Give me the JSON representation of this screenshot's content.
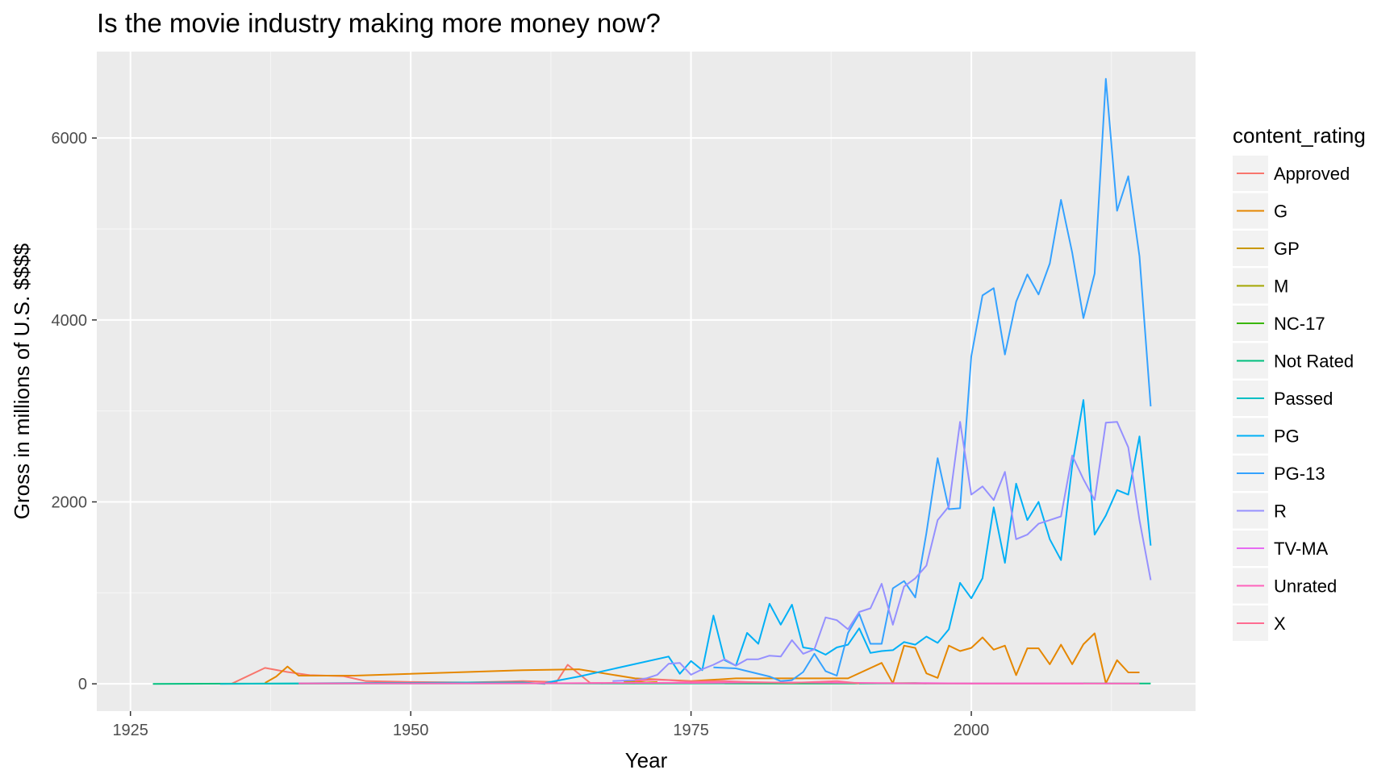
{
  "chart_data": {
    "type": "line",
    "title": "Is the movie industry making more money now?",
    "xlabel": "Year",
    "ylabel": "Gross in millions of U.S. $$$$",
    "xlim": [
      1922,
      2020
    ],
    "ylim": [
      -300,
      6950
    ],
    "x_ticks": [
      1925,
      1950,
      1975,
      2000
    ],
    "y_ticks": [
      0,
      2000,
      4000,
      6000
    ],
    "grid": true,
    "legend_title": "content_rating",
    "legend_position": "right",
    "series": [
      {
        "name": "Approved",
        "color": "#F8766D",
        "points": [
          [
            1934,
            0
          ],
          [
            1937,
            175
          ],
          [
            1939,
            130
          ],
          [
            1941,
            95
          ],
          [
            1944,
            85
          ],
          [
            1946,
            30
          ],
          [
            1950,
            20
          ],
          [
            1955,
            15
          ],
          [
            1960,
            30
          ],
          [
            1963,
            20
          ],
          [
            1964,
            210
          ],
          [
            1966,
            10
          ],
          [
            1970,
            5
          ]
        ]
      },
      {
        "name": "G",
        "color": "#E58700",
        "points": [
          [
            1937,
            10
          ],
          [
            1938,
            80
          ],
          [
            1939,
            190
          ],
          [
            1940,
            90
          ],
          [
            1945,
            90
          ],
          [
            1955,
            130
          ],
          [
            1960,
            150
          ],
          [
            1965,
            160
          ],
          [
            1970,
            60
          ],
          [
            1975,
            30
          ],
          [
            1979,
            60
          ],
          [
            1984,
            60
          ],
          [
            1989,
            60
          ],
          [
            1992,
            230
          ],
          [
            1993,
            5
          ],
          [
            1994,
            420
          ],
          [
            1995,
            395
          ],
          [
            1996,
            115
          ],
          [
            1997,
            65
          ],
          [
            1998,
            420
          ],
          [
            1999,
            360
          ],
          [
            2000,
            395
          ],
          [
            2001,
            510
          ],
          [
            2002,
            375
          ],
          [
            2003,
            420
          ],
          [
            2004,
            95
          ],
          [
            2005,
            390
          ],
          [
            2006,
            390
          ],
          [
            2007,
            215
          ],
          [
            2008,
            430
          ],
          [
            2009,
            215
          ],
          [
            2010,
            435
          ],
          [
            2011,
            555
          ],
          [
            2012,
            5
          ],
          [
            2013,
            260
          ],
          [
            2014,
            125
          ],
          [
            2015,
            125
          ]
        ]
      },
      {
        "name": "GP",
        "color": "#C99800",
        "points": [
          [
            1969,
            20
          ],
          [
            1970,
            25
          ],
          [
            1971,
            15
          ],
          [
            1972,
            20
          ]
        ]
      },
      {
        "name": "M",
        "color": "#A3A500",
        "points": [
          [
            1967,
            5
          ],
          [
            1968,
            10
          ],
          [
            1969,
            5
          ]
        ]
      },
      {
        "name": "NC-17",
        "color": "#39B600",
        "points": [
          [
            1978,
            5
          ],
          [
            1985,
            3
          ],
          [
            1990,
            5
          ],
          [
            1995,
            8
          ],
          [
            1996,
            5
          ]
        ]
      },
      {
        "name": "Not Rated",
        "color": "#00BF7D",
        "points": [
          [
            1927,
            0
          ],
          [
            1935,
            2
          ],
          [
            1947,
            3
          ],
          [
            1960,
            5
          ],
          [
            1970,
            3
          ],
          [
            1980,
            5
          ],
          [
            1990,
            5
          ],
          [
            2000,
            3
          ],
          [
            2010,
            5
          ],
          [
            2016,
            3
          ]
        ]
      },
      {
        "name": "Passed",
        "color": "#00BFC4",
        "points": [
          [
            1933,
            0
          ],
          [
            1940,
            5
          ],
          [
            1947,
            10
          ],
          [
            1950,
            10
          ],
          [
            1955,
            15
          ],
          [
            1960,
            15
          ],
          [
            1962,
            0
          ]
        ]
      },
      {
        "name": "PG",
        "color": "#00B0F6",
        "points": [
          [
            1962,
            10
          ],
          [
            1965,
            80
          ],
          [
            1973,
            300
          ],
          [
            1974,
            110
          ],
          [
            1975,
            250
          ],
          [
            1976,
            150
          ],
          [
            1977,
            750
          ],
          [
            1978,
            260
          ],
          [
            1979,
            200
          ],
          [
            1980,
            560
          ],
          [
            1981,
            440
          ],
          [
            1982,
            880
          ],
          [
            1983,
            650
          ],
          [
            1984,
            870
          ],
          [
            1985,
            400
          ],
          [
            1986,
            380
          ],
          [
            1987,
            320
          ],
          [
            1988,
            400
          ],
          [
            1989,
            430
          ],
          [
            1990,
            610
          ],
          [
            1991,
            340
          ],
          [
            1992,
            360
          ],
          [
            1993,
            370
          ],
          [
            1994,
            460
          ],
          [
            1995,
            430
          ],
          [
            1996,
            520
          ],
          [
            1997,
            450
          ],
          [
            1998,
            600
          ],
          [
            1999,
            1110
          ],
          [
            2000,
            940
          ],
          [
            2001,
            1160
          ],
          [
            2002,
            1940
          ],
          [
            2003,
            1330
          ],
          [
            2004,
            2200
          ],
          [
            2005,
            1800
          ],
          [
            2006,
            2000
          ],
          [
            2007,
            1590
          ],
          [
            2008,
            1360
          ],
          [
            2009,
            2400
          ],
          [
            2010,
            3120
          ],
          [
            2011,
            1640
          ],
          [
            2012,
            1850
          ],
          [
            2013,
            2130
          ],
          [
            2014,
            2080
          ],
          [
            2015,
            2720
          ],
          [
            2016,
            1520
          ]
        ]
      },
      {
        "name": "PG-13",
        "color": "#35A2FF",
        "points": [
          [
            1977,
            180
          ],
          [
            1979,
            170
          ],
          [
            1982,
            80
          ],
          [
            1983,
            30
          ],
          [
            1984,
            40
          ],
          [
            1985,
            130
          ],
          [
            1986,
            330
          ],
          [
            1987,
            140
          ],
          [
            1988,
            90
          ],
          [
            1989,
            560
          ],
          [
            1990,
            770
          ],
          [
            1991,
            440
          ],
          [
            1992,
            440
          ],
          [
            1993,
            1050
          ],
          [
            1994,
            1130
          ],
          [
            1995,
            950
          ],
          [
            1996,
            1660
          ],
          [
            1997,
            2480
          ],
          [
            1998,
            1920
          ],
          [
            1999,
            1930
          ],
          [
            2000,
            3600
          ],
          [
            2001,
            4270
          ],
          [
            2002,
            4350
          ],
          [
            2003,
            3620
          ],
          [
            2004,
            4200
          ],
          [
            2005,
            4500
          ],
          [
            2006,
            4280
          ],
          [
            2007,
            4620
          ],
          [
            2008,
            5320
          ],
          [
            2009,
            4740
          ],
          [
            2010,
            4020
          ],
          [
            2011,
            4510
          ],
          [
            2012,
            6650
          ],
          [
            2013,
            5200
          ],
          [
            2014,
            5580
          ],
          [
            2015,
            4700
          ],
          [
            2016,
            3050
          ]
        ]
      },
      {
        "name": "R",
        "color": "#9590FF",
        "points": [
          [
            1968,
            30
          ],
          [
            1970,
            40
          ],
          [
            1971,
            60
          ],
          [
            1972,
            100
          ],
          [
            1973,
            220
          ],
          [
            1974,
            230
          ],
          [
            1975,
            100
          ],
          [
            1976,
            160
          ],
          [
            1977,
            210
          ],
          [
            1978,
            270
          ],
          [
            1979,
            200
          ],
          [
            1980,
            270
          ],
          [
            1981,
            270
          ],
          [
            1982,
            310
          ],
          [
            1983,
            300
          ],
          [
            1984,
            480
          ],
          [
            1985,
            330
          ],
          [
            1986,
            380
          ],
          [
            1987,
            730
          ],
          [
            1988,
            700
          ],
          [
            1989,
            600
          ],
          [
            1990,
            790
          ],
          [
            1991,
            830
          ],
          [
            1992,
            1100
          ],
          [
            1993,
            650
          ],
          [
            1994,
            1070
          ],
          [
            1995,
            1160
          ],
          [
            1996,
            1300
          ],
          [
            1997,
            1800
          ],
          [
            1998,
            1950
          ],
          [
            1999,
            2880
          ],
          [
            2000,
            2080
          ],
          [
            2001,
            2170
          ],
          [
            2002,
            2020
          ],
          [
            2003,
            2330
          ],
          [
            2004,
            1590
          ],
          [
            2005,
            1640
          ],
          [
            2006,
            1760
          ],
          [
            2007,
            1800
          ],
          [
            2008,
            1840
          ],
          [
            2009,
            2510
          ],
          [
            2010,
            2250
          ],
          [
            2011,
            2020
          ],
          [
            2012,
            2870
          ],
          [
            2013,
            2880
          ],
          [
            2014,
            2600
          ],
          [
            2015,
            1800
          ],
          [
            2016,
            1140
          ]
        ]
      },
      {
        "name": "TV-MA",
        "color": "#E76BF3",
        "points": [
          [
            1993,
            5
          ],
          [
            1996,
            8
          ],
          [
            2000,
            3
          ],
          [
            2005,
            5
          ],
          [
            2010,
            3
          ]
        ]
      },
      {
        "name": "Unrated",
        "color": "#FF62BC",
        "points": [
          [
            1940,
            5
          ],
          [
            1955,
            5
          ],
          [
            1960,
            5
          ],
          [
            1970,
            10
          ],
          [
            1975,
            10
          ],
          [
            1980,
            15
          ],
          [
            1985,
            15
          ],
          [
            1990,
            10
          ],
          [
            1995,
            5
          ],
          [
            2000,
            3
          ],
          [
            2005,
            3
          ],
          [
            2010,
            3
          ],
          [
            2015,
            3
          ]
        ]
      },
      {
        "name": "X",
        "color": "#FF6C91",
        "points": [
          [
            1970,
            35
          ],
          [
            1971,
            40
          ],
          [
            1972,
            45
          ],
          [
            1973,
            40
          ],
          [
            1974,
            30
          ],
          [
            1975,
            25
          ],
          [
            1978,
            30
          ],
          [
            1980,
            20
          ],
          [
            1984,
            10
          ],
          [
            1986,
            20
          ],
          [
            1988,
            30
          ],
          [
            1990,
            5
          ]
        ]
      }
    ]
  }
}
